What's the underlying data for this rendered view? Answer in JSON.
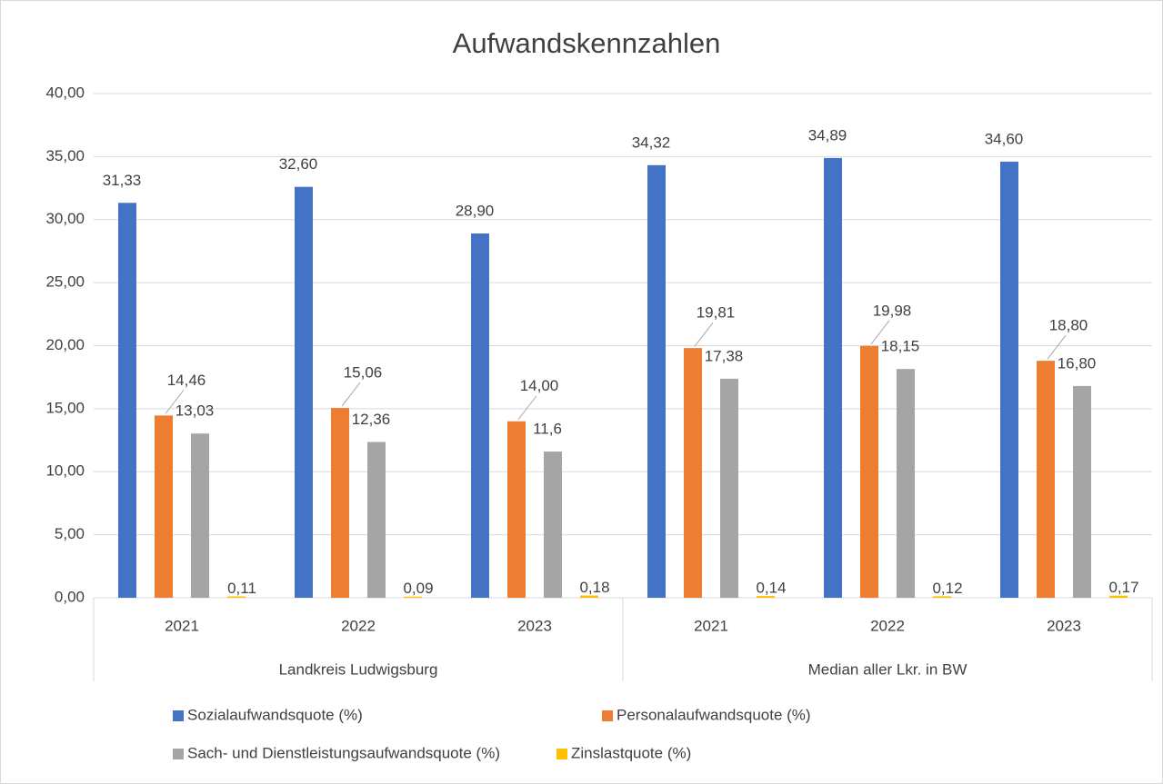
{
  "chart_data": {
    "type": "bar",
    "title": "Aufwandskennzahlen",
    "categories": [
      "2021",
      "2022",
      "2023",
      "2021",
      "2022",
      "2023"
    ],
    "group_labels": [
      "Landkreis Ludwigsburg",
      "Median aller Lkr. in BW"
    ],
    "series": [
      {
        "name": "Sozialaufwandsquote (%)",
        "color": "#4472c4",
        "values": [
          31.33,
          32.6,
          28.9,
          34.32,
          34.89,
          34.6
        ],
        "value_labels": [
          "31,33",
          "32,60",
          "28,90",
          "34,32",
          "34,89",
          "34,60"
        ]
      },
      {
        "name": "Personalaufwandsquote (%)",
        "color": "#ed7d31",
        "values": [
          14.46,
          15.06,
          14.0,
          19.81,
          19.98,
          18.8
        ],
        "value_labels": [
          "14,46",
          "15,06",
          "14,00",
          "19,81",
          "19,98",
          "18,80"
        ]
      },
      {
        "name": "Sach- und Dienstleistungsaufwandsquote (%)",
        "color": "#a5a5a5",
        "values": [
          13.03,
          12.36,
          11.6,
          17.38,
          18.15,
          16.8
        ],
        "value_labels": [
          "13,03",
          "12,36",
          "11,6",
          "17,38",
          "18,15",
          "16,80"
        ]
      },
      {
        "name": "Zinslastquote (%)",
        "color": "#ffc000",
        "values": [
          0.11,
          0.09,
          0.18,
          0.14,
          0.12,
          0.17
        ],
        "value_labels": [
          "0,11",
          "0,09",
          "0,18",
          "0,14",
          "0,12",
          "0,17"
        ]
      }
    ],
    "ylim": [
      0,
      40
    ],
    "yticks": [
      {
        "value": 0,
        "label": "0,00"
      },
      {
        "value": 5,
        "label": "5,00"
      },
      {
        "value": 10,
        "label": "10,00"
      },
      {
        "value": 15,
        "label": "15,00"
      },
      {
        "value": 20,
        "label": "20,00"
      },
      {
        "value": 25,
        "label": "25,00"
      },
      {
        "value": 30,
        "label": "30,00"
      },
      {
        "value": 35,
        "label": "35,00"
      },
      {
        "value": 40,
        "label": "40,00"
      }
    ],
    "grid": true
  }
}
